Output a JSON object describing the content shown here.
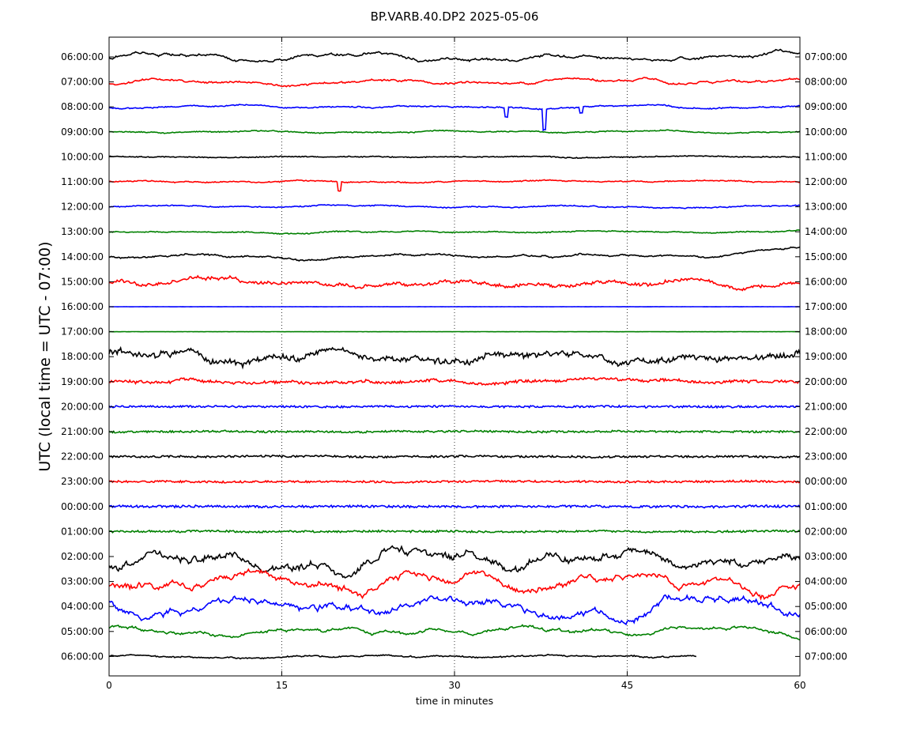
{
  "chart_data": {
    "type": "line",
    "title": "BP.VARB.40.DP2 2025-05-06",
    "xlabel": "time in minutes",
    "ylabel": "UTC (local time = UTC - 07:00)",
    "xlim": [
      0,
      60
    ],
    "x_ticks": [
      0,
      15,
      30,
      45,
      60
    ],
    "grid": "vertical dotted lines at 15, 30, 45",
    "colors": [
      "#000000",
      "#ff0000",
      "#0000ff",
      "#008000"
    ],
    "rows": [
      {
        "left": "06:00:00",
        "right": "07:00:00",
        "color": "#000000",
        "amp": 6,
        "noise": 0.6,
        "seed": 1
      },
      {
        "left": "07:00:00",
        "right": "08:00:00",
        "color": "#ff0000",
        "amp": 4,
        "noise": 0.6,
        "seed": 2
      },
      {
        "left": "08:00:00",
        "right": "09:00:00",
        "color": "#0000ff",
        "amp": 2,
        "noise": 0.5,
        "seed": 3,
        "spikes": [
          [
            34.5,
            12
          ],
          [
            37.8,
            26
          ],
          [
            41,
            8
          ]
        ]
      },
      {
        "left": "09:00:00",
        "right": "10:00:00",
        "color": "#008000",
        "amp": 1.5,
        "noise": 0.5,
        "seed": 4
      },
      {
        "left": "10:00:00",
        "right": "11:00:00",
        "color": "#000000",
        "amp": 1,
        "noise": 0.5,
        "seed": 5
      },
      {
        "left": "11:00:00",
        "right": "12:00:00",
        "color": "#ff0000",
        "amp": 1.5,
        "noise": 0.5,
        "seed": 6,
        "spikes": [
          [
            20,
            12
          ]
        ]
      },
      {
        "left": "12:00:00",
        "right": "13:00:00",
        "color": "#0000ff",
        "amp": 1.5,
        "noise": 0.5,
        "seed": 7
      },
      {
        "left": "13:00:00",
        "right": "14:00:00",
        "color": "#008000",
        "amp": 1.5,
        "noise": 0.5,
        "seed": 8
      },
      {
        "left": "14:00:00",
        "right": "15:00:00",
        "color": "#000000",
        "amp": 3,
        "noise": 0.6,
        "seed": 9,
        "trend_end": -40
      },
      {
        "left": "15:00:00",
        "right": "16:00:00",
        "color": "#ff0000",
        "amp": 6,
        "noise": 1.5,
        "seed": 10
      },
      {
        "left": "16:00:00",
        "right": "17:00:00",
        "color": "#0000ff",
        "amp": 0,
        "noise": 0.1,
        "seed": 11
      },
      {
        "left": "17:00:00",
        "right": "18:00:00",
        "color": "#008000",
        "amp": 0,
        "noise": 0.1,
        "seed": 12
      },
      {
        "left": "18:00:00",
        "right": "19:00:00",
        "color": "#000000",
        "amp": 10,
        "noise": 2.5,
        "seed": 13
      },
      {
        "left": "19:00:00",
        "right": "20:00:00",
        "color": "#ff0000",
        "amp": 3,
        "noise": 1.5,
        "seed": 14
      },
      {
        "left": "20:00:00",
        "right": "21:00:00",
        "color": "#0000ff",
        "amp": 0.5,
        "noise": 1.2,
        "seed": 15
      },
      {
        "left": "21:00:00",
        "right": "22:00:00",
        "color": "#008000",
        "amp": 0.5,
        "noise": 1.2,
        "seed": 16
      },
      {
        "left": "22:00:00",
        "right": "23:00:00",
        "color": "#000000",
        "amp": 0.5,
        "noise": 1.2,
        "seed": 17
      },
      {
        "left": "23:00:00",
        "right": "00:00:00",
        "color": "#ff0000",
        "amp": 0.5,
        "noise": 1.2,
        "seed": 18
      },
      {
        "left": "00:00:00",
        "right": "01:00:00",
        "color": "#0000ff",
        "amp": 0.5,
        "noise": 1.4,
        "seed": 19
      },
      {
        "left": "01:00:00",
        "right": "02:00:00",
        "color": "#008000",
        "amp": 0.5,
        "noise": 1.2,
        "seed": 20
      },
      {
        "left": "02:00:00",
        "right": "03:00:00",
        "color": "#000000",
        "amp": 14,
        "noise": 2.2,
        "seed": 21
      },
      {
        "left": "03:00:00",
        "right": "04:00:00",
        "color": "#ff0000",
        "amp": 14,
        "noise": 1.4,
        "seed": 22
      },
      {
        "left": "04:00:00",
        "right": "05:00:00",
        "color": "#0000ff",
        "amp": 16,
        "noise": 1.0,
        "seed": 23
      },
      {
        "left": "05:00:00",
        "right": "06:00:00",
        "color": "#008000",
        "amp": 6,
        "noise": 0.8,
        "seed": 24
      },
      {
        "left": "06:00:00",
        "right": "07:00:00",
        "color": "#000000",
        "amp": 2,
        "noise": 0.6,
        "seed": 25,
        "end_minute": 51
      }
    ]
  }
}
